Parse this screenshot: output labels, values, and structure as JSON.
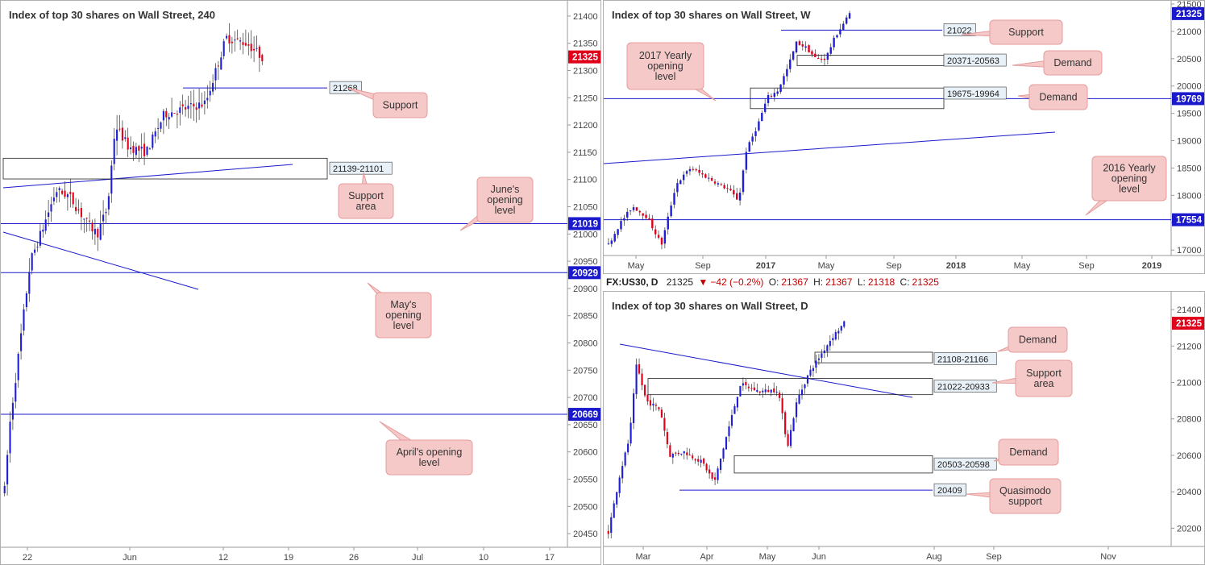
{
  "colors": {
    "bull": "#1f1fd6",
    "bear": "#e0001a",
    "level": "#1a1acc",
    "callout_fill": "#f6c9c9",
    "callout_stroke": "#e59c9c",
    "price_badge": "#1a1acc",
    "last_badge": "#e0001a"
  },
  "header": {
    "symbol": "FX:US30,",
    "timeframe": "D",
    "last": "21325",
    "change": "−42 (−0.2%)",
    "o_label": "O:",
    "o": "21367",
    "h_label": "H:",
    "h": "21367",
    "l_label": "L:",
    "l": "21318",
    "c_label": "C:",
    "c": "21325"
  },
  "chart_data": [
    {
      "type": "candlestick",
      "title": "Index of top 30 shares on Wall Street, 240",
      "ylim": [
        20425,
        21425
      ],
      "y_ticks": [
        "21400",
        "21350",
        "21300",
        "21250",
        "21200",
        "21150",
        "21100",
        "21050",
        "21000",
        "20950",
        "20900",
        "20850",
        "20800",
        "20750",
        "20700",
        "20650",
        "20600",
        "20550",
        "20500",
        "20450"
      ],
      "x_ticks": [
        "22",
        "Jun",
        "12",
        "19",
        "26",
        "Jul",
        "10",
        "17"
      ],
      "last_price": "21325",
      "levels": [
        {
          "value": "21268",
          "label": "21268"
        },
        {
          "value": "21019",
          "label": "21019"
        },
        {
          "value": "20929",
          "label": "20929"
        },
        {
          "value": "20669",
          "label": "20669"
        }
      ],
      "zones": [
        {
          "label": "21139-21101",
          "low": 21101,
          "high": 21139
        }
      ],
      "annotations": [
        "Support",
        "Support area",
        "June's opening level",
        "May's opening level",
        "April's opening level"
      ]
    },
    {
      "type": "candlestick",
      "title": "Index of top 30 shares on Wall Street, W",
      "ylim": [
        16900,
        21500
      ],
      "y_ticks": [
        "21500",
        "21000",
        "20500",
        "20000",
        "19500",
        "19000",
        "18500",
        "18000",
        "17500",
        "17000"
      ],
      "x_ticks": [
        "May",
        "Sep",
        "2017",
        "May",
        "Sep",
        "2018",
        "May",
        "Sep",
        "2019"
      ],
      "last_price": "21325",
      "levels": [
        {
          "value": "21022",
          "label": "21022"
        },
        {
          "value": "19769",
          "label": "19769"
        },
        {
          "value": "17554",
          "label": "17554"
        }
      ],
      "zones": [
        {
          "label": "20371-20563",
          "low": 20371,
          "high": 20563
        },
        {
          "label": "19675-19964",
          "low": 19675,
          "high": 19964
        }
      ],
      "annotations": [
        "Support",
        "Demand",
        "Demand",
        "2017 Yearly opening level",
        "2016 Yearly opening level"
      ]
    },
    {
      "type": "candlestick",
      "title": "Index of top 30 shares on Wall Street, D",
      "ylim": [
        20100,
        21480
      ],
      "y_ticks": [
        "21400",
        "21200",
        "21000",
        "20800",
        "20600",
        "20400",
        "20200"
      ],
      "x_ticks": [
        "Mar",
        "Apr",
        "May",
        "Jun",
        "Aug",
        "Sep",
        "Nov"
      ],
      "last_price": "21325",
      "levels": [
        {
          "value": "20409",
          "label": "20409"
        }
      ],
      "zones": [
        {
          "label": "21108-21166",
          "low": 21108,
          "high": 21166
        },
        {
          "label": "21022-20933",
          "low": 20933,
          "high": 21022
        },
        {
          "label": "20503-20598",
          "low": 20503,
          "high": 20598
        }
      ],
      "annotations": [
        "Demand",
        "Support area",
        "Demand",
        "Quasimodo support"
      ]
    }
  ],
  "callouts": {
    "h4_support": "Support",
    "h4_support_area": "Support\narea",
    "h4_june": "June's\nopening\nlevel",
    "h4_may": "May's\nopening\nlevel",
    "h4_april": "April's opening\nlevel",
    "w_support": "Support",
    "w_demand1": "Demand",
    "w_demand2": "Demand",
    "w_yearly2017": "2017 Yearly\nopening\nlevel",
    "w_yearly2016": "2016 Yearly\nopening\nlevel",
    "d_demand1": "Demand",
    "d_support_area": "Support\narea",
    "d_demand2": "Demand",
    "d_quasimodo": "Quasimodo\nsupport"
  }
}
